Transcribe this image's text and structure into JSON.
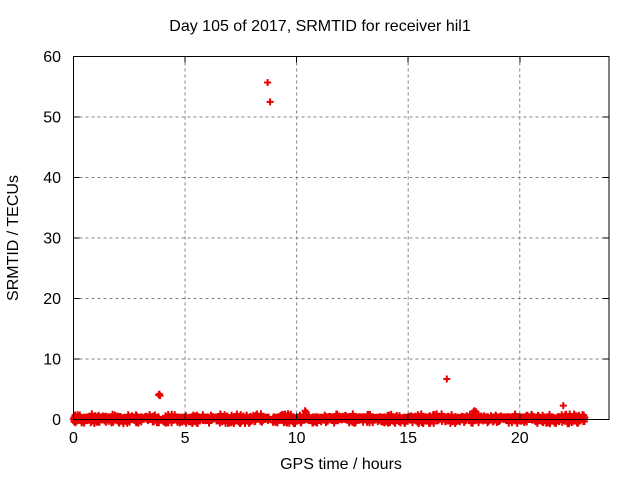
{
  "chart_data": {
    "type": "scatter",
    "title": "Day 105 of 2017, SRMTID for receiver hil1",
    "xlabel": "GPS time / hours",
    "ylabel": "SRMTID / TECUs",
    "xlim": [
      0,
      24
    ],
    "ylim": [
      0,
      60
    ],
    "xticks": [
      0,
      5,
      10,
      15,
      20
    ],
    "yticks": [
      0,
      10,
      20,
      30,
      40,
      50,
      60
    ],
    "grid": true,
    "grid_style": "dashed",
    "legend": "none",
    "marker": {
      "glyph": "plus",
      "size": 7,
      "stroke_width": 2
    },
    "colors": {
      "marker": "#e60000",
      "border": "#000000",
      "grid": "#808080",
      "background": "#ffffff",
      "text": "#000000"
    },
    "outlier_points": [
      {
        "x": 8.7,
        "y": 55.7
      },
      {
        "x": 8.81,
        "y": 52.5
      },
      {
        "x": 3.82,
        "y": 4.05
      },
      {
        "x": 3.85,
        "y": 4.2
      },
      {
        "x": 3.88,
        "y": 3.95
      },
      {
        "x": 16.73,
        "y": 6.7
      },
      {
        "x": 17.93,
        "y": 1.3
      },
      {
        "x": 17.97,
        "y": 1.45
      },
      {
        "x": 18.0,
        "y": 1.15
      },
      {
        "x": 18.03,
        "y": 1.3
      },
      {
        "x": 21.95,
        "y": 2.3
      },
      {
        "x": 10.38,
        "y": 1.45
      },
      {
        "x": 10.42,
        "y": 1.2
      }
    ],
    "baseline_band": {
      "description": "dense band of SRMTID noise values near 0 TECU spanning the whole day",
      "x_start": 0.0,
      "x_end": 22.93,
      "step_hours": 0.02,
      "y_core_max": 0.45,
      "y_spike_max": 0.95,
      "y_below_min": -0.7,
      "p_second": 0.35,
      "p_spike": 0.12,
      "p_below": 0.25,
      "gaps": [
        [
          3.88,
          4.04
        ],
        [
          8.76,
          8.92
        ]
      ],
      "seed": 7
    }
  }
}
